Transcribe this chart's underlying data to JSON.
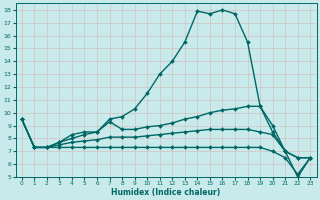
{
  "title": "",
  "xlabel": "Humidex (Indice chaleur)",
  "ylabel": "",
  "background_color": "#c8eaea",
  "grid_color": "#b0d4d4",
  "line_color": "#006666",
  "xlim": [
    -0.5,
    23.5
  ],
  "ylim": [
    5,
    18.5
  ],
  "yticks": [
    5,
    6,
    7,
    8,
    9,
    10,
    11,
    12,
    13,
    14,
    15,
    16,
    17,
    18
  ],
  "xticks": [
    0,
    1,
    2,
    3,
    4,
    5,
    6,
    7,
    8,
    9,
    10,
    11,
    12,
    13,
    14,
    15,
    16,
    17,
    18,
    19,
    20,
    21,
    22,
    23
  ],
  "series": [
    {
      "x": [
        0,
        1,
        2,
        3,
        4,
        5,
        6,
        7,
        8,
        9,
        10,
        11,
        12,
        13,
        14,
        15,
        16,
        17,
        18,
        19,
        20,
        21,
        22,
        23
      ],
      "y": [
        9.5,
        7.3,
        7.3,
        7.7,
        8.3,
        8.5,
        8.5,
        9.5,
        9.7,
        10.3,
        11.5,
        13.0,
        14.0,
        15.5,
        17.9,
        17.7,
        18.0,
        17.7,
        15.5,
        10.5,
        9.0,
        7.0,
        5.0,
        6.5
      ],
      "marker": "D",
      "markersize": 2,
      "linewidth": 1.0
    },
    {
      "x": [
        0,
        1,
        2,
        3,
        4,
        5,
        6,
        7,
        8,
        9,
        10,
        11,
        12,
        13,
        14,
        15,
        16,
        17,
        18,
        19,
        20,
        21,
        22,
        23
      ],
      "y": [
        9.5,
        7.3,
        7.3,
        7.7,
        8.0,
        8.3,
        8.5,
        9.3,
        8.7,
        8.7,
        8.9,
        9.0,
        9.2,
        9.5,
        9.7,
        10.0,
        10.2,
        10.3,
        10.5,
        10.5,
        8.5,
        7.0,
        6.5,
        6.5
      ],
      "marker": "D",
      "markersize": 2,
      "linewidth": 1.0
    },
    {
      "x": [
        0,
        1,
        2,
        3,
        4,
        5,
        6,
        7,
        8,
        9,
        10,
        11,
        12,
        13,
        14,
        15,
        16,
        17,
        18,
        19,
        20,
        21,
        22,
        23
      ],
      "y": [
        9.5,
        7.3,
        7.3,
        7.5,
        7.7,
        7.8,
        7.9,
        8.1,
        8.1,
        8.1,
        8.2,
        8.3,
        8.4,
        8.5,
        8.6,
        8.7,
        8.7,
        8.7,
        8.7,
        8.5,
        8.3,
        7.0,
        6.5,
        6.5
      ],
      "marker": "D",
      "markersize": 2,
      "linewidth": 1.0
    },
    {
      "x": [
        0,
        1,
        2,
        3,
        4,
        5,
        6,
        7,
        8,
        9,
        10,
        11,
        12,
        13,
        14,
        15,
        16,
        17,
        18,
        19,
        20,
        21,
        22,
        23
      ],
      "y": [
        9.5,
        7.3,
        7.3,
        7.3,
        7.3,
        7.3,
        7.3,
        7.3,
        7.3,
        7.3,
        7.3,
        7.3,
        7.3,
        7.3,
        7.3,
        7.3,
        7.3,
        7.3,
        7.3,
        7.3,
        7.0,
        6.5,
        5.2,
        6.5
      ],
      "marker": "D",
      "markersize": 2,
      "linewidth": 1.0
    }
  ]
}
